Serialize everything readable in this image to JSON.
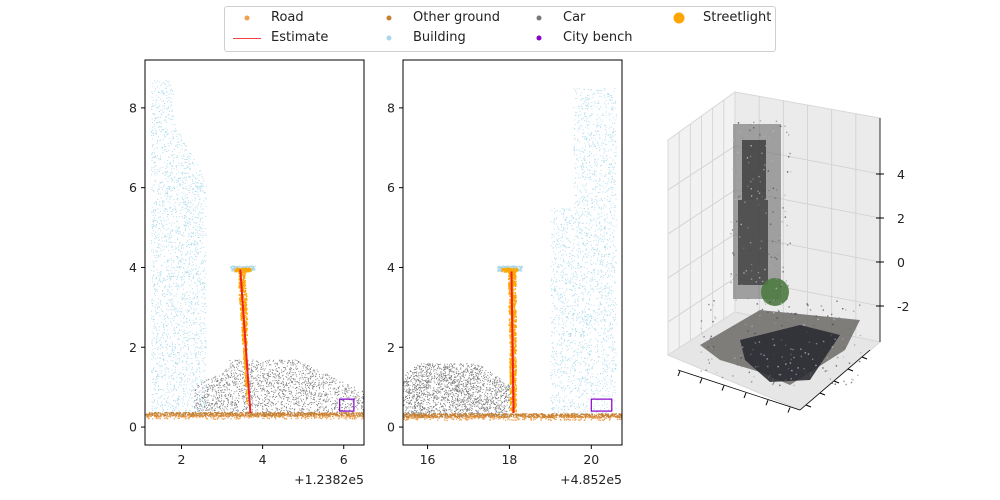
{
  "legend": [
    {
      "label": "Road",
      "color": "#f0a050",
      "marker": "dot",
      "size": 5
    },
    {
      "label": "Estimate",
      "color": "#ee4444",
      "marker": "line"
    },
    {
      "label": "Other ground",
      "color": "#c88030",
      "marker": "dot",
      "size": 5
    },
    {
      "label": "Building",
      "color": "#a8d8ea",
      "marker": "dot",
      "size": 5
    },
    {
      "label": "Car",
      "color": "#777777",
      "marker": "dot",
      "size": 5
    },
    {
      "label": "City bench",
      "color": "#8800cc",
      "marker": "dot",
      "size": 5
    },
    {
      "label": "Streetlight",
      "color": "#ffa500",
      "marker": "dot",
      "size": 11
    }
  ],
  "chart_data": [
    {
      "type": "scatter",
      "panel": "xz-view",
      "xlim": [
        1.1,
        6.5
      ],
      "ylim": [
        -0.45,
        9.2
      ],
      "x_ticks": [
        2,
        4,
        6
      ],
      "y_ticks": [
        0,
        2,
        4,
        6,
        8
      ],
      "offset_label": "+1.2382e5",
      "estimate_line": {
        "x": [
          3.45,
          3.7
        ],
        "y": [
          3.95,
          0.35
        ]
      },
      "streetlight_pole": {
        "x": [
          3.4,
          3.6
        ],
        "y": [
          0.4,
          4.0
        ]
      },
      "lamp_head": {
        "x": [
          3.2,
          3.8
        ],
        "y": 4.0
      },
      "ground_z": 0.33,
      "car_extent": {
        "x": [
          2.3,
          6.5
        ],
        "z": [
          0.3,
          1.7
        ]
      },
      "building_extent": {
        "x": [
          1.25,
          2.6
        ],
        "z": [
          0.3,
          8.7
        ]
      },
      "bench_extent": {
        "x": [
          5.9,
          6.25
        ],
        "z": [
          0.4,
          0.7
        ]
      }
    },
    {
      "type": "scatter",
      "panel": "yz-view",
      "xlim": [
        15.4,
        20.75
      ],
      "ylim": [
        -0.45,
        9.2
      ],
      "x_ticks": [
        16,
        18,
        20
      ],
      "y_ticks": [
        0,
        2,
        4,
        6,
        8
      ],
      "offset_label": "+4.852e5",
      "estimate_line": {
        "x": [
          18.05,
          18.1
        ],
        "y": [
          3.9,
          0.35
        ]
      },
      "streetlight_pole": {
        "x": [
          17.95,
          18.15
        ],
        "y": [
          0.4,
          3.95
        ]
      },
      "lamp_head": {
        "x": [
          17.7,
          18.3
        ],
        "y": 4.0
      },
      "ground_z": 0.3,
      "car_extent": {
        "x": [
          15.4,
          18.0
        ],
        "z": [
          0.25,
          1.65
        ]
      },
      "building_extent": {
        "x": [
          19.0,
          20.6
        ],
        "z": [
          0.3,
          8.5
        ]
      },
      "bench_extent": {
        "x": [
          20.0,
          20.5
        ],
        "z": [
          0.4,
          0.7
        ]
      }
    },
    {
      "type": "3d-scatter",
      "panel": "3d-view",
      "z_ticks": [
        -2,
        0,
        2,
        4
      ]
    }
  ]
}
